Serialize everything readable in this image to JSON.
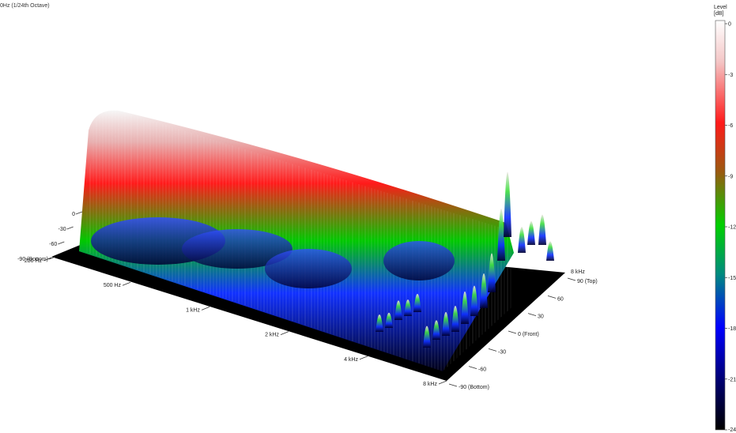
{
  "title": "0Hz (1/24th Octave)",
  "chart_data": {
    "type": "3d-surface",
    "title": "0Hz (1/24th Octave)",
    "frequency_axis": {
      "ticks": [
        "250 Hz",
        "500 Hz",
        "1 kHz",
        "2 kHz",
        "4 kHz",
        "8 kHz"
      ],
      "values_hz": [
        250,
        500,
        1000,
        2000,
        4000,
        8000
      ],
      "scale": "log"
    },
    "angle_axis": {
      "ticks": [
        "90 (Top)",
        "60",
        "30",
        "0 (Front)",
        "-30",
        "-60",
        "-90 (Bottom)"
      ],
      "values_deg": [
        90,
        60,
        30,
        0,
        -30,
        -60,
        -90
      ]
    },
    "vertical_axis": {
      "ticks": [
        "0",
        "-30",
        "-60",
        "-90 (Bottom)"
      ],
      "values": [
        0,
        -30,
        -60,
        -90
      ]
    },
    "colorbar": {
      "label_line1": "Level",
      "label_line2": "[dB]",
      "ticks": [
        "0",
        "-3",
        "-6",
        "-9",
        "-12",
        "-15",
        "-18",
        "-21",
        "-24"
      ],
      "values_db": [
        0,
        -3,
        -6,
        -9,
        -12,
        -15,
        -18,
        -21,
        -24
      ],
      "colors": [
        "#ffffff",
        "#ff0000",
        "#00e000",
        "#0000ff",
        "#000000"
      ]
    }
  }
}
